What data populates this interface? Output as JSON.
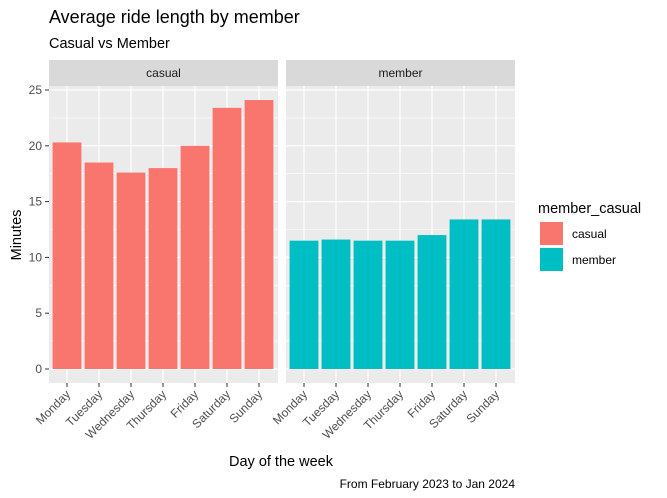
{
  "chart_data": {
    "type": "bar",
    "title": "Average ride length by member",
    "subtitle": "Casual vs Member",
    "xlabel": "Day of the week",
    "ylabel": "Minutes",
    "caption": "From February 2023 to Jan 2024",
    "categories": [
      "Monday",
      "Tuesday",
      "Wednesday",
      "Thursday",
      "Friday",
      "Saturday",
      "Sunday"
    ],
    "ylim": [
      0,
      25
    ],
    "yticks": [
      0,
      5,
      10,
      15,
      20,
      25
    ],
    "grid": true,
    "legend": {
      "title": "member_casual",
      "position": "right"
    },
    "facets": [
      "casual",
      "member"
    ],
    "series": [
      {
        "name": "casual",
        "color": "#F8766D",
        "values": [
          20.3,
          18.5,
          17.6,
          18.0,
          20.0,
          23.4,
          24.1
        ]
      },
      {
        "name": "member",
        "color": "#00BFC4",
        "values": [
          11.5,
          11.6,
          11.5,
          11.5,
          12.0,
          13.4,
          13.4
        ]
      }
    ]
  }
}
